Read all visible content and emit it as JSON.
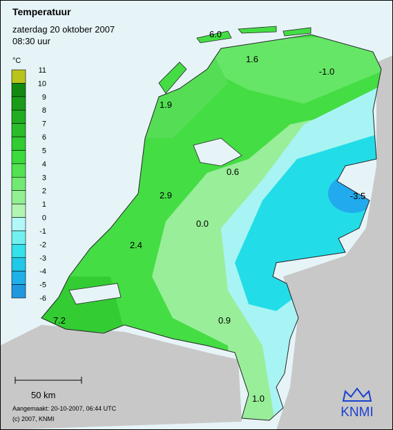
{
  "header": {
    "title": "Temperatuur",
    "date": "zaterdag 20 oktober 2007",
    "time": "08:30 uur"
  },
  "legend": {
    "unit": "°C",
    "labels": [
      "11",
      "10",
      "9",
      "8",
      "7",
      "6",
      "5",
      "4",
      "3",
      "2",
      "1",
      "0",
      "-1",
      "-2",
      "-3",
      "-4",
      "-5",
      "-6"
    ],
    "colors": [
      "#b8c41c",
      "#128a12",
      "#1a9c1a",
      "#22ac22",
      "#2abc2a",
      "#32cc32",
      "#3cda3c",
      "#52e252",
      "#72ea72",
      "#92f092",
      "#b2f4b2",
      "#b2f8f8",
      "#72f0f0",
      "#34e2ea",
      "#22c8e8",
      "#20b0e8",
      "#2098e0"
    ]
  },
  "map_labels": [
    "6.0",
    "1.6",
    "-1.0",
    "1.9",
    "0.6",
    "2.9",
    "-3.5",
    "0.0",
    "2.4",
    "0.9",
    "7.2",
    "1.0"
  ],
  "scale": "50 km",
  "footer": {
    "created": "Aangemaakt: 20-10-2007, 06:44 UTC",
    "copyright": "(c) 2007, KNMI"
  },
  "logo": "KNMI"
}
